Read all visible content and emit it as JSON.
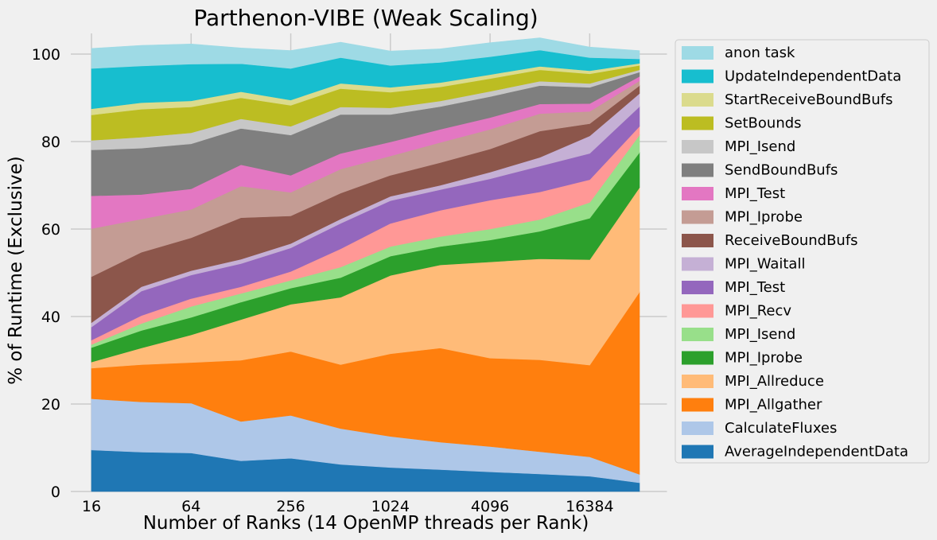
{
  "chart_data": {
    "type": "area",
    "stacked": true,
    "title": "Parthenon-VIBE (Weak Scaling)",
    "xlabel": "Number of Ranks (14 OpenMP threads per Rank)",
    "ylabel": "% of Runtime (Exclusive)",
    "xscale": "log2",
    "xlim": [
      12,
      48000
    ],
    "ylim": [
      0,
      105
    ],
    "xticks": [
      16,
      64,
      256,
      1024,
      4096,
      16384
    ],
    "yticks": [
      0,
      20,
      40,
      60,
      80,
      100
    ],
    "grid": true,
    "legend_position": "outside-right",
    "x": [
      16,
      32,
      64,
      128,
      256,
      512,
      1024,
      2048,
      4096,
      8192,
      16384,
      32768
    ],
    "series": [
      {
        "name": "AverageIndependentData",
        "color": "#1f77b4",
        "values": [
          9.5,
          9,
          8.8,
          7,
          7.6,
          6.2,
          5.5,
          5,
          4.5,
          4,
          3.5,
          2
        ]
      },
      {
        "name": "CalculateFluxes",
        "color": "#aec7e8",
        "values": [
          11.7,
          11.5,
          11.4,
          9,
          9.8,
          8.2,
          7.1,
          6.3,
          5.8,
          5.1,
          4.4,
          1.9
        ]
      },
      {
        "name": "MPI_Allgather",
        "color": "#ff7f0e",
        "values": [
          7,
          8.5,
          9.3,
          14,
          14.6,
          14.6,
          18.9,
          21.5,
          20.2,
          21,
          21,
          41.7
        ]
      },
      {
        "name": "MPI_Allreduce",
        "color": "#ffbb78",
        "values": [
          1.4,
          3.8,
          6.3,
          9.3,
          10.8,
          15.4,
          17.9,
          19,
          22,
          23.1,
          24.1,
          23.9
        ]
      },
      {
        "name": "MPI_Iprobe",
        "color": "#2ca02c",
        "values": [
          3.3,
          4,
          4,
          4,
          3.7,
          4.5,
          4.4,
          4.2,
          5,
          6.3,
          9.5,
          8
        ]
      },
      {
        "name": "MPI_Isend",
        "color": "#98df8a",
        "values": [
          0.7,
          1.6,
          2.5,
          2,
          1.8,
          2.4,
          2.2,
          2.3,
          2.5,
          2.7,
          3.6,
          4
        ]
      },
      {
        "name": "MPI_Recv",
        "color": "#ff9896",
        "values": [
          1,
          1.8,
          1.8,
          1.5,
          2,
          4.2,
          5.3,
          6,
          6.6,
          6.3,
          5.2,
          2
        ]
      },
      {
        "name": "MPI_Test",
        "color": "#9467bd",
        "values": [
          3,
          5.6,
          5.4,
          5.3,
          5.4,
          5.8,
          5.2,
          4.7,
          4.9,
          5.9,
          6,
          4.5
        ]
      },
      {
        "name": "MPI_Waitall",
        "color": "#c5b0d5",
        "values": [
          1,
          1,
          1,
          1,
          1,
          1,
          1,
          1,
          1.5,
          2,
          4,
          3
        ]
      },
      {
        "name": "ReceiveBoundBufs",
        "color": "#8c564b",
        "values": [
          10.5,
          7.9,
          7.5,
          9.5,
          6.3,
          5.9,
          4.8,
          5.2,
          5.3,
          6,
          2.8,
          1.8
        ]
      },
      {
        "name": "MPI_Iprobe",
        "color": "#c49c94",
        "values": [
          11,
          7.6,
          6.5,
          7.2,
          5.4,
          5.5,
          4.4,
          4.6,
          4.5,
          4,
          2.8,
          1.1
        ]
      },
      {
        "name": "MPI_Test",
        "color": "#e377c2",
        "values": [
          7.5,
          5.6,
          4.7,
          4.9,
          3.9,
          3.6,
          3.2,
          3,
          2.7,
          2.2,
          1.8,
          1
        ]
      },
      {
        "name": "SendBoundBufs",
        "color": "#7f7f7f",
        "values": [
          10.5,
          10.6,
          10.3,
          8.3,
          9.2,
          8.9,
          6.3,
          5.2,
          4.8,
          4.2,
          3.7,
          1
        ]
      },
      {
        "name": "MPI_Isend",
        "color": "#c7c7c7",
        "values": [
          2.2,
          2.5,
          2.5,
          2.2,
          2,
          1.7,
          1.5,
          1.3,
          1.2,
          1,
          0.9,
          0.5
        ]
      },
      {
        "name": "SetBounds",
        "color": "#bcbd22",
        "values": [
          5.8,
          6.4,
          5.9,
          4.8,
          4.8,
          4.2,
          3.6,
          3.2,
          2.9,
          2.6,
          2.2,
          1
        ]
      },
      {
        "name": "StartReceiveBoundBufs",
        "color": "#dbdb8d",
        "values": [
          1.4,
          1.5,
          1.4,
          1.4,
          1.2,
          1.2,
          1.1,
          1,
          0.9,
          0.8,
          0.7,
          0.5
        ]
      },
      {
        "name": "UpdateIndependentData",
        "color": "#17becf",
        "values": [
          9.2,
          8.4,
          8.4,
          6.4,
          7.2,
          5.9,
          5,
          4.6,
          4.1,
          3.7,
          3,
          1
        ]
      },
      {
        "name": "anon task",
        "color": "#9edae5",
        "values": [
          4.6,
          4.7,
          4.6,
          3.6,
          4.1,
          3.5,
          3.3,
          3.1,
          3.2,
          2.8,
          2.4,
          1.9
        ]
      }
    ]
  }
}
